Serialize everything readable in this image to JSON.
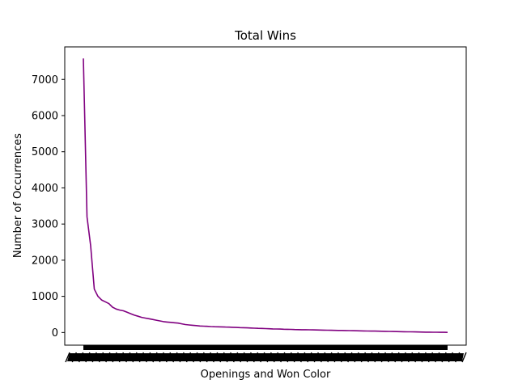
{
  "chart_data": {
    "type": "line",
    "title": "Total Wins",
    "xlabel": "Openings and Won Color",
    "ylabel": "Number of Occurrences",
    "ylim": [
      -350,
      7900
    ],
    "yticks": [
      0,
      1000,
      2000,
      3000,
      4000,
      5000,
      6000,
      7000
    ],
    "grid": false,
    "line_color": "#800080",
    "x_tick_labels_note": "hundreds of overlapping rotated category labels rendered as an illegible black band",
    "series": [
      {
        "values": [
          7580,
          3200,
          2400,
          1200,
          1000,
          900,
          850,
          800,
          700,
          650,
          620,
          600,
          560,
          520,
          480,
          450,
          420,
          400,
          380,
          360,
          340,
          320,
          300,
          290,
          280,
          270,
          260,
          240,
          220,
          210,
          200,
          190,
          180,
          175,
          170,
          165,
          160,
          158,
          155,
          150,
          148,
          145,
          140,
          136,
          132,
          128,
          124,
          120,
          116,
          112,
          108,
          104,
          100,
          97,
          94,
          91,
          88,
          85,
          82,
          80,
          78,
          76,
          74,
          72,
          70,
          68,
          66,
          64,
          62,
          60,
          58,
          56,
          54,
          52,
          50,
          48,
          46,
          44,
          42,
          40,
          38,
          36,
          34,
          32,
          30,
          28,
          26,
          24,
          22,
          20,
          18,
          16,
          14,
          12,
          10,
          9,
          8,
          7,
          6,
          5,
          4
        ]
      }
    ]
  }
}
